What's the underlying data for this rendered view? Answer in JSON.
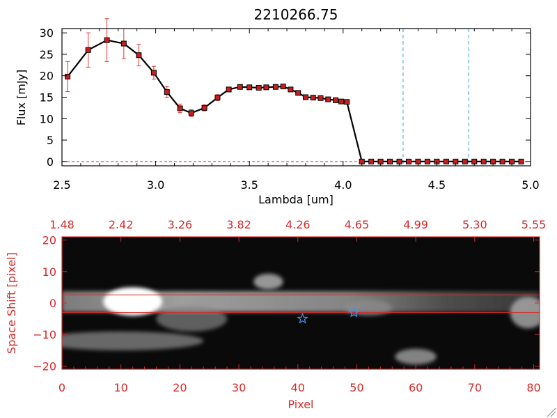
{
  "chart_data": [
    {
      "type": "line",
      "title": "2210266.75",
      "xlabel": "Lambda [um]",
      "ylabel": "Flux [mJy]",
      "xlim": [
        2.5,
        5.0
      ],
      "ylim": [
        -1,
        31
      ],
      "x_ticks": [
        2.5,
        3.0,
        3.5,
        4.0,
        4.5,
        5.0
      ],
      "x_tick_labels": [
        "2.5",
        "3.0",
        "3.5",
        "4.0",
        "4.5",
        "5.0"
      ],
      "y_ticks": [
        0,
        5,
        10,
        15,
        20,
        25,
        30
      ],
      "y_tick_labels": [
        "0",
        "5",
        "10",
        "15",
        "20",
        "25",
        "30"
      ],
      "series": [
        {
          "name": "flux",
          "x": [
            2.53,
            2.64,
            2.74,
            2.83,
            2.91,
            2.99,
            3.06,
            3.13,
            3.19,
            3.26,
            3.33,
            3.39,
            3.45,
            3.5,
            3.55,
            3.59,
            3.64,
            3.68,
            3.72,
            3.76,
            3.8,
            3.84,
            3.88,
            3.92,
            3.96,
            3.99,
            4.02,
            4.1,
            4.15,
            4.2,
            4.25,
            4.3,
            4.35,
            4.4,
            4.45,
            4.5,
            4.55,
            4.6,
            4.65,
            4.7,
            4.75,
            4.8,
            4.85,
            4.9,
            4.95
          ],
          "y": [
            19.8,
            26.0,
            28.3,
            27.5,
            24.8,
            20.7,
            16.2,
            12.4,
            11.3,
            12.5,
            14.9,
            16.8,
            17.4,
            17.3,
            17.2,
            17.3,
            17.4,
            17.5,
            16.8,
            16.0,
            15.0,
            14.9,
            14.8,
            14.5,
            14.3,
            14.0,
            13.9,
            0.0,
            0.0,
            0.0,
            0.0,
            0.0,
            0.0,
            0.0,
            0.0,
            0.0,
            0.0,
            0.0,
            0.0,
            0.0,
            0.0,
            0.0,
            0.0,
            0.0,
            0.0
          ],
          "yerr": [
            3.5,
            4.0,
            5.0,
            3.5,
            2.5,
            1.5,
            1.3,
            1.0,
            0.8,
            0.7,
            0.7,
            0.5,
            0.5,
            0.5,
            0.5,
            0.5,
            0.5,
            0.5,
            0.5,
            0.5,
            0.5,
            0.5,
            0.5,
            0.5,
            0.5,
            0.5,
            0.5,
            0,
            0,
            0,
            0,
            0,
            0,
            0,
            0,
            0,
            0,
            0,
            0,
            0,
            0,
            0,
            0,
            0,
            0
          ]
        }
      ],
      "vlines": [
        4.32,
        4.67
      ],
      "colors": {
        "line": "#000000",
        "marker": "#c81e1e",
        "error": "#e03030",
        "vline": "#3aa0d8",
        "baseline": "#e03030"
      }
    },
    {
      "type": "heatmap",
      "xlabel": "Pixel",
      "ylabel": "Space Shift [pixel]",
      "xlim": [
        0,
        81
      ],
      "ylim": [
        -21,
        21
      ],
      "x_ticks": [
        0,
        10,
        20,
        30,
        40,
        50,
        60,
        70,
        80
      ],
      "x_tick_labels": [
        "0",
        "10",
        "20",
        "30",
        "40",
        "50",
        "60",
        "70",
        "80"
      ],
      "y_ticks": [
        -20,
        -10,
        0,
        10,
        20
      ],
      "y_tick_labels": [
        "−20",
        "−10",
        "0",
        "10",
        "20"
      ],
      "top_tick_labels": [
        "1.48",
        "2.42",
        "3.26",
        "3.82",
        "4.26",
        "4.65",
        "4.99",
        "5.30",
        "5.55"
      ],
      "hlines": [
        2.6,
        -3.0
      ],
      "star_markers": [
        {
          "x": 40.8,
          "y": -5.0
        },
        {
          "x": 49.5,
          "y": -3.0
        }
      ],
      "bright_blobs": [
        {
          "x": 12,
          "y": 0.5,
          "rx": 5,
          "ry": 4.5,
          "intensity": 1.0
        },
        {
          "x": 35,
          "y": 6.8,
          "rx": 2.5,
          "ry": 2.5,
          "intensity": 0.55
        },
        {
          "x": 22,
          "y": -5,
          "rx": 6,
          "ry": 4,
          "intensity": 0.25
        },
        {
          "x": 10,
          "y": -12,
          "rx": 14,
          "ry": 3,
          "intensity": 0.3
        },
        {
          "x": 60,
          "y": -17,
          "rx": 3.5,
          "ry": 2.5,
          "intensity": 0.45
        },
        {
          "x": 79,
          "y": -3,
          "rx": 3,
          "ry": 5,
          "intensity": 0.5
        },
        {
          "x": 52,
          "y": -1.5,
          "rx": 4,
          "ry": 2.5,
          "intensity": 0.3
        }
      ],
      "colors": {
        "axis": "#d62a2a",
        "band": "#d8d8d8",
        "star": "#4a90e2"
      }
    }
  ]
}
